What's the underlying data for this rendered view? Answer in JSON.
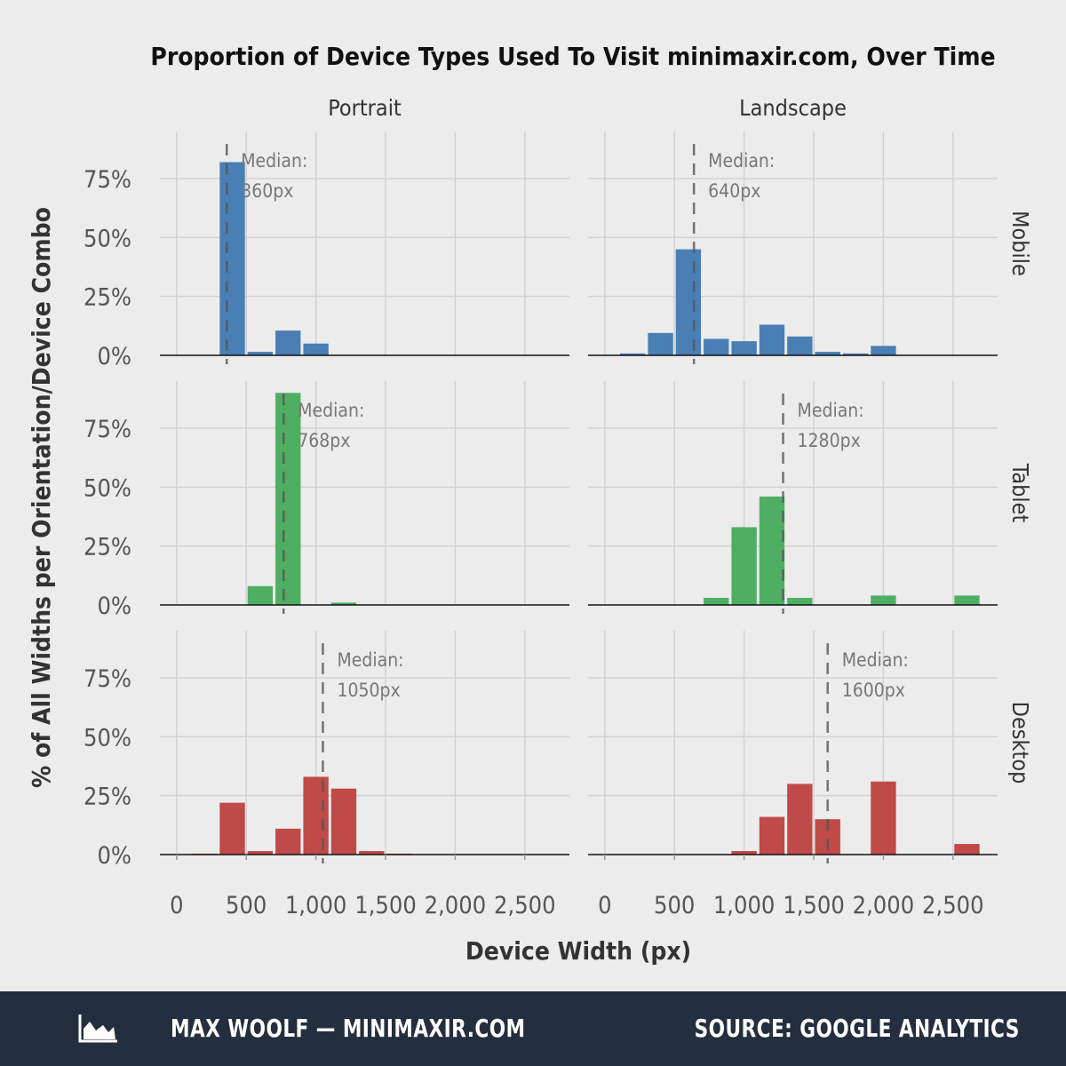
{
  "chart_data": {
    "type": "bar",
    "title": "Proportion of Device Types Used To Visit minimaxir.com, Over Time",
    "xlabel": "Device Width (px)",
    "ylabel": "% of All Widths per Orientation/Device Combo",
    "xlim": [
      -120,
      2820
    ],
    "ylim": [
      0,
      0.95
    ],
    "x_ticks": [
      0,
      500,
      1000,
      1500,
      2000,
      2500
    ],
    "x_tick_labels": [
      "0",
      "500",
      "1,000",
      "1,500",
      "2,000",
      "2,500"
    ],
    "y_ticks": [
      0,
      0.25,
      0.5,
      0.75
    ],
    "y_tick_labels": [
      "0%",
      "25%",
      "50%",
      "75%"
    ],
    "bin_width": 200,
    "columns": [
      "Portrait",
      "Landscape"
    ],
    "rows": [
      "Mobile",
      "Tablet",
      "Desktop"
    ],
    "colors": {
      "Mobile": "#4a7fb5",
      "Tablet": "#4eae62",
      "Desktop": "#bf4a47"
    },
    "panels": [
      {
        "orientation": "Portrait",
        "device": "Mobile",
        "median_value": 360,
        "median_label": [
          "Median:",
          "360px"
        ],
        "bins": [
          {
            "x": 400,
            "y": 0.82
          },
          {
            "x": 600,
            "y": 0.015
          },
          {
            "x": 800,
            "y": 0.105
          },
          {
            "x": 1000,
            "y": 0.05
          }
        ]
      },
      {
        "orientation": "Landscape",
        "device": "Mobile",
        "median_value": 640,
        "median_label": [
          "Median:",
          "640px"
        ],
        "bins": [
          {
            "x": 200,
            "y": 0.008
          },
          {
            "x": 400,
            "y": 0.095
          },
          {
            "x": 600,
            "y": 0.45
          },
          {
            "x": 800,
            "y": 0.07
          },
          {
            "x": 1000,
            "y": 0.06
          },
          {
            "x": 1200,
            "y": 0.13
          },
          {
            "x": 1400,
            "y": 0.08
          },
          {
            "x": 1600,
            "y": 0.015
          },
          {
            "x": 1800,
            "y": 0.008
          },
          {
            "x": 2000,
            "y": 0.04
          }
        ]
      },
      {
        "orientation": "Portrait",
        "device": "Tablet",
        "median_value": 768,
        "median_label": [
          "Median:",
          "768px"
        ],
        "bins": [
          {
            "x": 600,
            "y": 0.08
          },
          {
            "x": 800,
            "y": 0.9
          },
          {
            "x": 1200,
            "y": 0.01
          }
        ]
      },
      {
        "orientation": "Landscape",
        "device": "Tablet",
        "median_value": 1280,
        "median_label": [
          "Median:",
          "1280px"
        ],
        "bins": [
          {
            "x": 800,
            "y": 0.03
          },
          {
            "x": 1000,
            "y": 0.33
          },
          {
            "x": 1200,
            "y": 0.46
          },
          {
            "x": 1400,
            "y": 0.03
          },
          {
            "x": 2000,
            "y": 0.04
          },
          {
            "x": 2600,
            "y": 0.04
          }
        ]
      },
      {
        "orientation": "Portrait",
        "device": "Desktop",
        "median_value": 1050,
        "median_label": [
          "Median:",
          "1050px"
        ],
        "bins": [
          {
            "x": 200,
            "y": 0.004
          },
          {
            "x": 400,
            "y": 0.22
          },
          {
            "x": 600,
            "y": 0.015
          },
          {
            "x": 800,
            "y": 0.11
          },
          {
            "x": 1000,
            "y": 0.33
          },
          {
            "x": 1200,
            "y": 0.28
          },
          {
            "x": 1400,
            "y": 0.015
          },
          {
            "x": 1600,
            "y": 0.004
          }
        ]
      },
      {
        "orientation": "Landscape",
        "device": "Desktop",
        "median_value": 1600,
        "median_label": [
          "Median:",
          "1600px"
        ],
        "bins": [
          {
            "x": 1000,
            "y": 0.015
          },
          {
            "x": 1200,
            "y": 0.16
          },
          {
            "x": 1400,
            "y": 0.3
          },
          {
            "x": 1600,
            "y": 0.15
          },
          {
            "x": 2000,
            "y": 0.31
          },
          {
            "x": 2600,
            "y": 0.045
          }
        ]
      }
    ]
  },
  "footer": {
    "author": "MAX WOOLF — MINIMAXIR.COM",
    "source": "SOURCE: GOOGLE ANALYTICS",
    "logo_icon": "area-chart-icon"
  }
}
